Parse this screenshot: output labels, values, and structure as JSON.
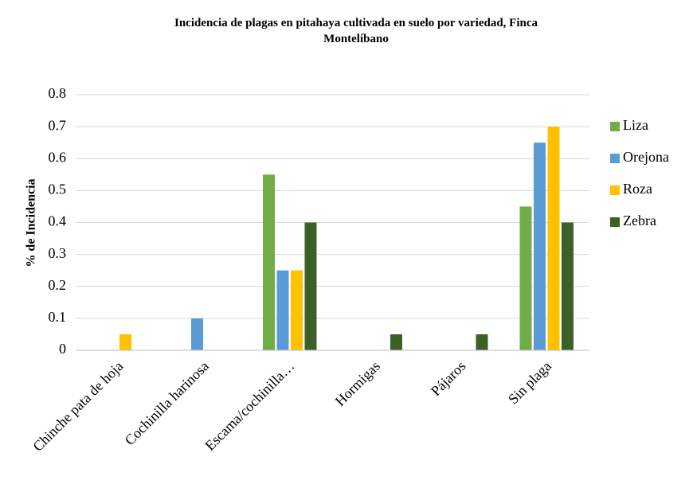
{
  "chart_data": {
    "type": "bar",
    "title": "Incidencia de plagas en pitahaya cultivada en suelo por variedad, Finca Montelíbano",
    "y_label": "% de Incidencia",
    "categories": [
      "Chinche pata de hoja",
      "Cochinilla harinosa",
      "Escama/cochinilla…",
      "Hormigas",
      "Pájaros",
      "Sin plaga"
    ],
    "series": [
      {
        "name": "Liza",
        "color": "#70ad47",
        "values": [
          0,
          0,
          0.55,
          0,
          0,
          0.45
        ]
      },
      {
        "name": "Orejona",
        "color": "#5b9bd5",
        "values": [
          0,
          0.1,
          0.25,
          0,
          0,
          0.65
        ]
      },
      {
        "name": "Roza",
        "color": "#ffc000",
        "values": [
          0.05,
          0,
          0.25,
          0,
          0,
          0.7
        ]
      },
      {
        "name": "Zebra",
        "color": "#3b6127",
        "values": [
          0,
          0,
          0.4,
          0.05,
          0.05,
          0.4
        ]
      }
    ],
    "ylim": [
      0,
      0.8
    ],
    "yticks": [
      0,
      0.1,
      0.2,
      0.3,
      0.4,
      0.5,
      0.6,
      0.7,
      0.8
    ],
    "grid": true,
    "legend": "right"
  }
}
